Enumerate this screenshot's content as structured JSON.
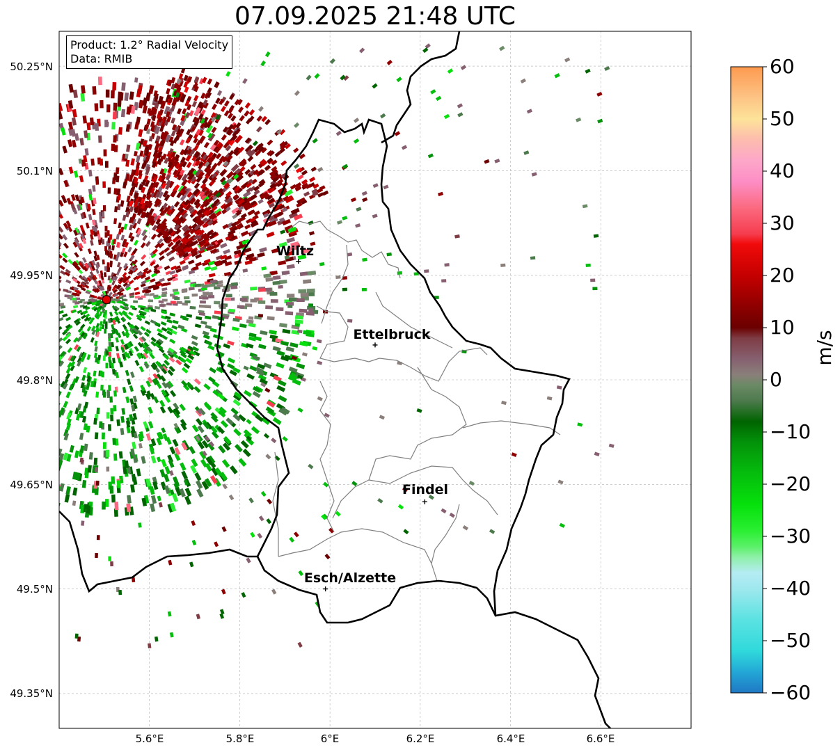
{
  "title": "07.09.2025 21:48 UTC",
  "info_box": {
    "product": "Product: 1.2° Radial Velocity",
    "data": "Data: RMIB"
  },
  "latitude_labels": [
    "50.25°N",
    "50.1°N",
    "49.95°N",
    "49.8°N",
    "49.65°N",
    "49.5°N",
    "49.35°N"
  ],
  "longitude_labels": [
    "5.6°E",
    "5.8°E",
    "6°E",
    "6.2°E",
    "6.4°E",
    "6.6°E"
  ],
  "cities": [
    {
      "name": "Wiltz",
      "lon": 5.93,
      "lat": 49.97
    },
    {
      "name": "Ettelbruck",
      "lon": 6.1,
      "lat": 49.85
    },
    {
      "name": "Findel",
      "lon": 6.21,
      "lat": 49.625
    },
    {
      "name": "Esch/Alzette",
      "lon": 5.99,
      "lat": 49.5
    }
  ],
  "radar_site": {
    "lon": 5.505,
    "lat": 49.915,
    "color": "#e00000"
  },
  "extent": {
    "lon_min": 5.4,
    "lon_max": 6.8,
    "lat_min": 49.3,
    "lat_max": 50.3
  },
  "colorbar": {
    "label": "m/s",
    "min": -60,
    "max": 60,
    "ticks": [
      "60",
      "50",
      "40",
      "30",
      "20",
      "10",
      "0",
      "−10",
      "−20",
      "−30",
      "−40",
      "−50",
      "−60"
    ],
    "stops": [
      {
        "v": -60,
        "c": "#1f78c4"
      },
      {
        "v": -56,
        "c": "#23a7d6"
      },
      {
        "v": -52,
        "c": "#2fd9db"
      },
      {
        "v": -46,
        "c": "#5be2e2"
      },
      {
        "v": -40,
        "c": "#9fe8ee"
      },
      {
        "v": -37,
        "c": "#b5ecf3"
      },
      {
        "v": -34,
        "c": "#8ef0a8"
      },
      {
        "v": -32,
        "c": "#5cf06a"
      },
      {
        "v": -29,
        "c": "#2bef33"
      },
      {
        "v": -24,
        "c": "#06e10c"
      },
      {
        "v": -18,
        "c": "#05bd0c"
      },
      {
        "v": -12,
        "c": "#03920a"
      },
      {
        "v": -8,
        "c": "#006400"
      },
      {
        "v": -4,
        "c": "#4d7a4d"
      },
      {
        "v": -1,
        "c": "#6b8a66"
      },
      {
        "v": 1,
        "c": "#8a7f7a"
      },
      {
        "v": 4,
        "c": "#866070"
      },
      {
        "v": 8,
        "c": "#7f3c44"
      },
      {
        "v": 10,
        "c": "#6b0000"
      },
      {
        "v": 14,
        "c": "#8e0000"
      },
      {
        "v": 20,
        "c": "#c50000"
      },
      {
        "v": 26,
        "c": "#f10a0a"
      },
      {
        "v": 28,
        "c": "#f63d4f"
      },
      {
        "v": 33,
        "c": "#fb6a80"
      },
      {
        "v": 38,
        "c": "#fd8ec5"
      },
      {
        "v": 42,
        "c": "#fda7c9"
      },
      {
        "v": 46,
        "c": "#fdbcae"
      },
      {
        "v": 50,
        "c": "#fde39a"
      },
      {
        "v": 54,
        "c": "#fdc486"
      },
      {
        "v": 60,
        "c": "#fd9a50"
      }
    ]
  },
  "colors": {
    "national_border": "#000000",
    "canton_border": "#808080",
    "grid": "#b0b0b0"
  }
}
